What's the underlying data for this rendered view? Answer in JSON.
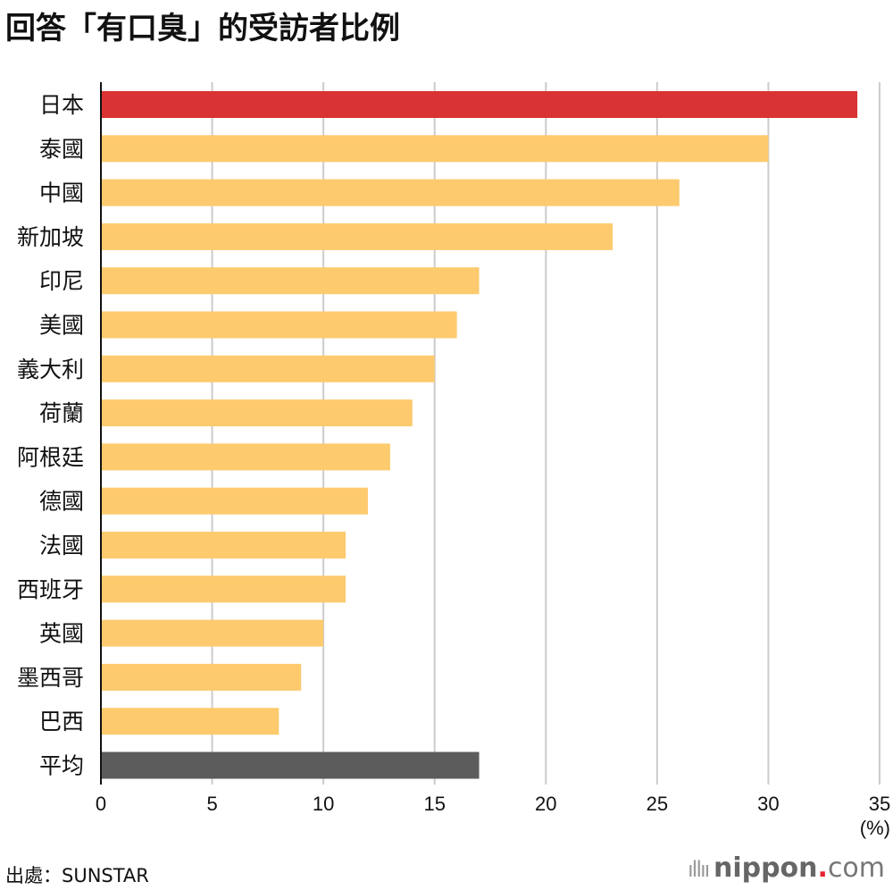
{
  "chart_data": {
    "type": "bar",
    "orientation": "horizontal",
    "title": "回答「有口臭」的受訪者比例",
    "categories": [
      "日本",
      "泰國",
      "中國",
      "新加坡",
      "印尼",
      "美國",
      "義大利",
      "荷蘭",
      "阿根廷",
      "德國",
      "法國",
      "西班牙",
      "英國",
      "墨西哥",
      "巴西",
      "平均"
    ],
    "values": [
      34,
      30,
      26,
      23,
      17,
      16,
      15,
      14,
      13,
      12,
      11,
      11,
      10,
      9,
      8,
      17
    ],
    "xlim": [
      0,
      35
    ],
    "xticks": [
      0,
      5,
      10,
      15,
      20,
      25,
      30,
      35
    ],
    "xunit": "(%)",
    "grid": true,
    "colors": {
      "highlight": "#d93333",
      "default": "#fdca6e",
      "average": "#5c5c5c",
      "grid": "#cccccc"
    }
  },
  "source": "出處：SUNSTAR",
  "logo": {
    "name": "nippon",
    "dot": ".",
    "suffix": "com"
  }
}
